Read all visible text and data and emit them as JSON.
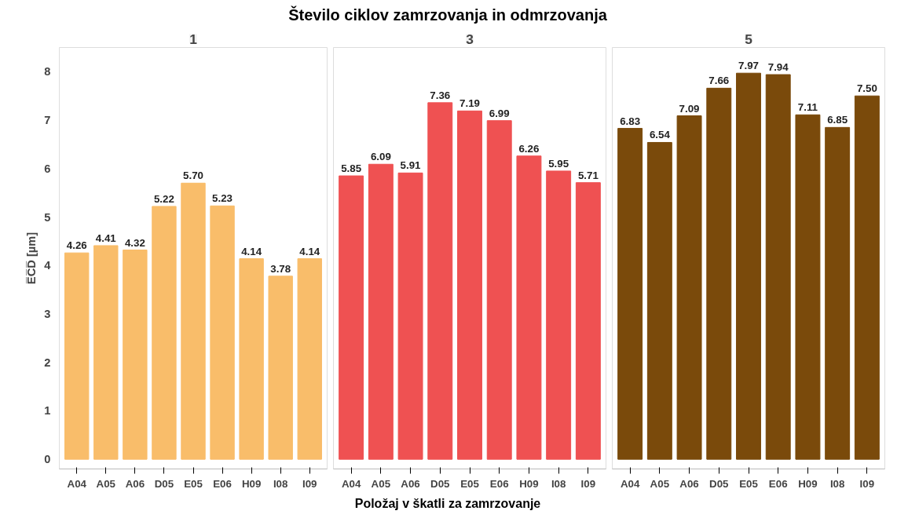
{
  "chart_data": [
    {
      "type": "bar",
      "subtitle": "1",
      "ylabel": "E̅C̅D̅ [µm]",
      "categories": [
        "A04",
        "A05",
        "A06",
        "D05",
        "E05",
        "E06",
        "H09",
        "I08",
        "I09"
      ],
      "values": [
        4.26,
        4.41,
        4.32,
        5.22,
        5.7,
        5.23,
        4.14,
        3.78,
        4.14
      ],
      "value_labels": [
        "4.26",
        "4.41",
        "4.32",
        "5.22",
        "5.70",
        "5.23",
        "4.14",
        "3.78",
        "4.14"
      ],
      "color": "#f9bd6a",
      "ylim": [
        -0.2,
        8.5
      ],
      "yticks": [
        0,
        1,
        2,
        3,
        4,
        5,
        6,
        7,
        8
      ],
      "grid": false
    },
    {
      "type": "bar",
      "title": "Število ciklov zamrzovanja in odmrzovanja",
      "subtitle": "3",
      "xlabel": "Položaj v škatli za zamrzovanje",
      "categories": [
        "A04",
        "A05",
        "A06",
        "D05",
        "E05",
        "E06",
        "H09",
        "I08",
        "I09"
      ],
      "values": [
        5.85,
        6.09,
        5.91,
        7.36,
        7.19,
        6.99,
        6.26,
        5.95,
        5.71
      ],
      "value_labels": [
        "5.85",
        "6.09",
        "5.91",
        "7.36",
        "7.19",
        "6.99",
        "6.26",
        "5.95",
        "5.71"
      ],
      "color": "#ef5152",
      "ylim": [
        -0.2,
        8.5
      ],
      "yticks": [
        0,
        1,
        2,
        3,
        4,
        5,
        6,
        7,
        8
      ],
      "grid": false,
      "tick_labels": "x"
    },
    {
      "type": "bar",
      "subtitle": "5",
      "categories": [
        "A04",
        "A05",
        "A06",
        "D05",
        "E05",
        "E06",
        "H09",
        "I08",
        "I09"
      ],
      "values": [
        6.83,
        6.54,
        7.09,
        7.66,
        7.97,
        7.94,
        7.11,
        6.85,
        7.5
      ],
      "value_labels": [
        "6.83",
        "6.54",
        "7.09",
        "7.66",
        "7.97",
        "7.94",
        "7.11",
        "6.85",
        "7.50"
      ],
      "color": "#7a4a0b",
      "ylim": [
        -0.2,
        8.5
      ],
      "yticks": [
        0,
        1,
        2,
        3,
        4,
        5,
        6,
        7,
        8
      ],
      "grid": false,
      "tick_labels": "x"
    }
  ]
}
